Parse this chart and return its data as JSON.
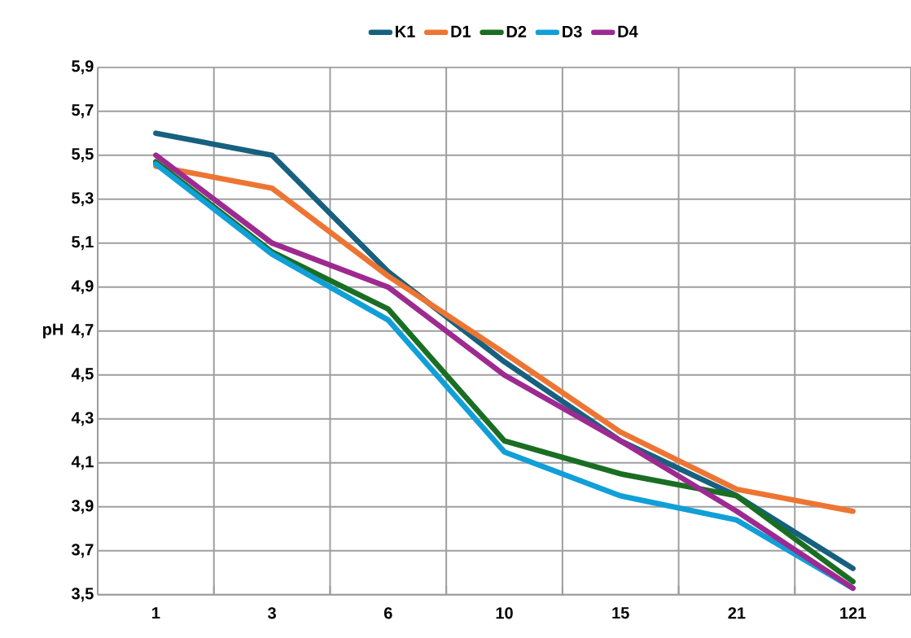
{
  "chart_data": {
    "type": "line",
    "ylabel": "pH",
    "categories": [
      "1",
      "3",
      "6",
      "10",
      "15",
      "21",
      "121"
    ],
    "series": [
      {
        "name": "K1",
        "color": "#17607f",
        "values": [
          5.6,
          5.5,
          4.97,
          4.56,
          4.2,
          3.95,
          3.62
        ]
      },
      {
        "name": "D1",
        "color": "#ed7533",
        "values": [
          5.45,
          5.35,
          4.95,
          4.6,
          4.24,
          3.98,
          3.88
        ]
      },
      {
        "name": "D2",
        "color": "#1a6e23",
        "values": [
          5.47,
          5.06,
          4.8,
          4.2,
          4.05,
          3.95,
          3.56
        ]
      },
      {
        "name": "D3",
        "color": "#119fd8",
        "values": [
          5.46,
          5.05,
          4.75,
          4.15,
          3.95,
          3.84,
          3.53
        ]
      },
      {
        "name": "D4",
        "color": "#9d2a91",
        "values": [
          5.5,
          5.1,
          4.9,
          4.5,
          4.2,
          3.88,
          3.53
        ]
      }
    ],
    "ylim": [
      3.5,
      5.9
    ],
    "yticks": [
      {
        "value": 3.5,
        "label": "3,5"
      },
      {
        "value": 3.7,
        "label": "3,7"
      },
      {
        "value": 3.9,
        "label": "3,9"
      },
      {
        "value": 4.1,
        "label": "4,1"
      },
      {
        "value": 4.3,
        "label": "4,3"
      },
      {
        "value": 4.5,
        "label": "4,5"
      },
      {
        "value": 4.7,
        "label": "4,7"
      },
      {
        "value": 4.9,
        "label": "4,9"
      },
      {
        "value": 5.1,
        "label": "5,1"
      },
      {
        "value": 5.3,
        "label": "5,3"
      },
      {
        "value": 5.5,
        "label": "5,5"
      },
      {
        "value": 5.7,
        "label": "5,7"
      },
      {
        "value": 5.9,
        "label": "5,9"
      }
    ],
    "grid": true,
    "legend": "top",
    "marker": "none",
    "line_style": "solid"
  }
}
